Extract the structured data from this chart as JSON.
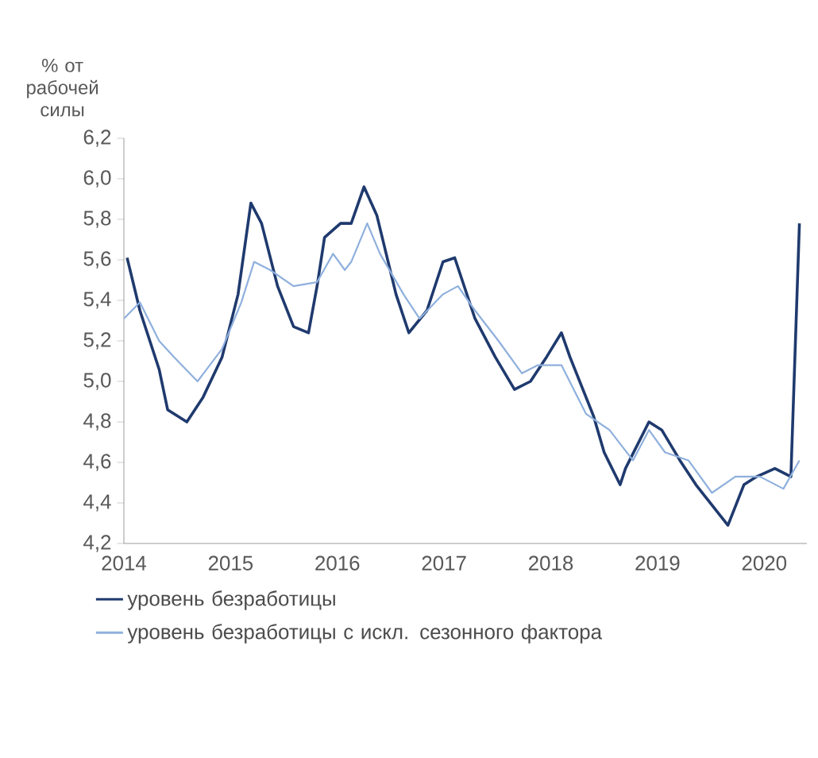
{
  "chart_data": {
    "type": "line",
    "ylabel": "% от рабочей силы",
    "xlim": [
      2014,
      2020.4
    ],
    "xticks": [
      {
        "value": 2014,
        "label": "2014"
      },
      {
        "value": 2015,
        "label": "2015"
      },
      {
        "value": 2016,
        "label": "2016"
      },
      {
        "value": 2017,
        "label": "2017"
      },
      {
        "value": 2018,
        "label": "2018"
      },
      {
        "value": 2019,
        "label": "2019"
      },
      {
        "value": 2020,
        "label": "2020"
      }
    ],
    "ylim": [
      4.2,
      6.2
    ],
    "yticks": [
      {
        "value": 4.2,
        "label": "4,2"
      },
      {
        "value": 4.4,
        "label": "4,4"
      },
      {
        "value": 4.6,
        "label": "4,6"
      },
      {
        "value": 4.8,
        "label": "4,8"
      },
      {
        "value": 5.0,
        "label": "5,0"
      },
      {
        "value": 5.2,
        "label": "5,2"
      },
      {
        "value": 5.4,
        "label": "5,4"
      },
      {
        "value": 5.6,
        "label": "5,6"
      },
      {
        "value": 5.8,
        "label": "5,8"
      },
      {
        "value": 6.0,
        "label": "6,0"
      },
      {
        "value": 6.2,
        "label": "6,2"
      }
    ],
    "grid": false,
    "legend": "bottom",
    "marker": "none",
    "line_style": "solid",
    "series": [
      {
        "name": "уровень безработицы",
        "color": "#1f3a6e",
        "x": [
          2014.03,
          2014.15,
          2014.33,
          2014.41,
          2014.59,
          2014.74,
          2014.92,
          2015.07,
          2015.19,
          2015.29,
          2015.44,
          2015.59,
          2015.73,
          2015.81,
          2015.88,
          2016.03,
          2016.13,
          2016.25,
          2016.37,
          2016.55,
          2016.67,
          2016.84,
          2016.99,
          2017.1,
          2017.29,
          2017.48,
          2017.66,
          2017.81,
          2017.96,
          2018.1,
          2018.18,
          2018.4,
          2018.5,
          2018.65,
          2018.7,
          2018.92,
          2019.04,
          2019.21,
          2019.36,
          2019.51,
          2019.66,
          2019.81,
          2019.93,
          2020.1,
          2020.25,
          2020.33
        ],
        "values": [
          5.61,
          5.35,
          5.06,
          4.86,
          4.8,
          4.92,
          5.12,
          5.43,
          5.88,
          5.78,
          5.47,
          5.27,
          5.24,
          5.47,
          5.71,
          5.78,
          5.78,
          5.96,
          5.82,
          5.43,
          5.24,
          5.35,
          5.59,
          5.61,
          5.31,
          5.12,
          4.96,
          5.0,
          5.12,
          5.24,
          5.12,
          4.83,
          4.65,
          4.49,
          4.57,
          4.8,
          4.76,
          4.61,
          4.49,
          4.39,
          4.29,
          4.49,
          4.53,
          4.57,
          4.53,
          5.78
        ]
      },
      {
        "name": "уровень безработицы с искл. сезонного фактора",
        "color": "#8fb0dd",
        "x": [
          2014.0,
          2014.15,
          2014.33,
          2014.47,
          2014.69,
          2014.92,
          2015.1,
          2015.22,
          2015.37,
          2015.59,
          2015.81,
          2015.96,
          2016.07,
          2016.13,
          2016.28,
          2016.4,
          2016.62,
          2016.77,
          2016.99,
          2017.13,
          2017.29,
          2017.51,
          2017.73,
          2017.88,
          2018.1,
          2018.33,
          2018.55,
          2018.77,
          2018.92,
          2019.07,
          2019.29,
          2019.51,
          2019.73,
          2019.96,
          2020.18,
          2020.33
        ],
        "values": [
          5.31,
          5.39,
          5.2,
          5.12,
          5.0,
          5.16,
          5.39,
          5.59,
          5.55,
          5.47,
          5.49,
          5.63,
          5.55,
          5.59,
          5.78,
          5.63,
          5.43,
          5.31,
          5.43,
          5.47,
          5.35,
          5.2,
          5.04,
          5.08,
          5.08,
          4.84,
          4.76,
          4.61,
          4.76,
          4.65,
          4.61,
          4.45,
          4.53,
          4.53,
          4.47,
          4.61
        ]
      }
    ]
  }
}
